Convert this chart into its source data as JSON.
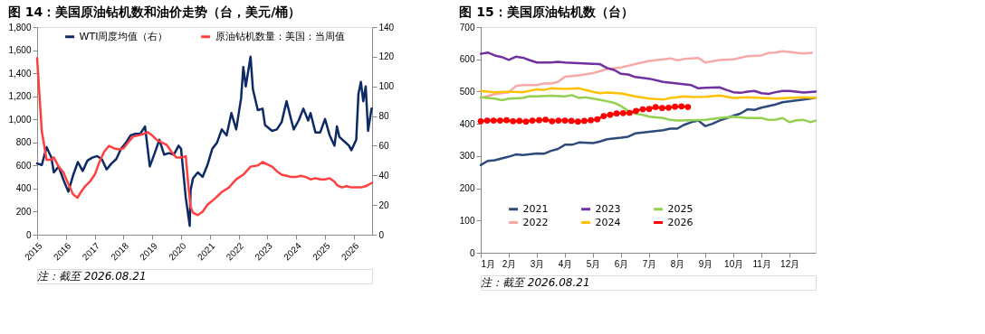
{
  "chart_data": [
    {
      "type": "line",
      "title": "图 14：美国原油钻机数和油价走势（台，美元/桶）",
      "annotations": [
        "注：截至 2026.08.21"
      ],
      "legend": "top",
      "grid": false,
      "xlim": [
        "2015-01",
        "2026-08-21"
      ],
      "xticks": [
        "2015",
        "2016",
        "2017",
        "2018",
        "2019",
        "2020",
        "2021",
        "2022",
        "2023",
        "2024",
        "2025",
        "2026"
      ],
      "ylim": [
        0,
        1800
      ],
      "yticks": [
        0,
        200,
        400,
        600,
        800,
        {
          "value": 1000,
          "label": "1,000"
        },
        {
          "value": 1200,
          "label": "1,200"
        },
        {
          "value": 1400,
          "label": "1,400"
        },
        {
          "value": 1600,
          "label": "1,600"
        },
        {
          "value": 1800,
          "label": "1,800"
        }
      ],
      "y2lim": [
        0,
        140
      ],
      "y2ticks": [
        0,
        20,
        40,
        60,
        80,
        100,
        120,
        140
      ],
      "series": [
        {
          "name": "WTI周度均值（右）",
          "color": "#0d2a66",
          "axis": "y2",
          "x": [
            "2015-01",
            "2015-03",
            "2015-05",
            "2015-07",
            "2015-08",
            "2015-10",
            "2015-12",
            "2016-02",
            "2016-04",
            "2016-06",
            "2016-08",
            "2016-10",
            "2016-12",
            "2017-02",
            "2017-04",
            "2017-06",
            "2017-08",
            "2017-10",
            "2017-12",
            "2018-02",
            "2018-04",
            "2018-06",
            "2018-08",
            "2018-10",
            "2018-12",
            "2019-02",
            "2019-04",
            "2019-06",
            "2019-08",
            "2019-10",
            "2019-12",
            "2020-01",
            "2020-03",
            "2020-04-20",
            "2020-05",
            "2020-06",
            "2020-08",
            "2020-10",
            "2020-12",
            "2021-02",
            "2021-04",
            "2021-06",
            "2021-08",
            "2021-10",
            "2021-12",
            "2022-02",
            "2022-03",
            "2022-04",
            "2022-06",
            "2022-07",
            "2022-09",
            "2022-11",
            "2022-12",
            "2023-03",
            "2023-05",
            "2023-07",
            "2023-09",
            "2023-11",
            "2023-12",
            "2024-02",
            "2024-04",
            "2024-06",
            "2024-07",
            "2024-09",
            "2024-11",
            "2025-01",
            "2025-03",
            "2025-05",
            "2025-06",
            "2025-07",
            "2025-09",
            "2025-11",
            "2025-12",
            "2026-02",
            "2026-03",
            "2026-04",
            "2026-05",
            "2026-06",
            "2026-07",
            "2026-08-14"
          ],
          "values": [
            48,
            47,
            59,
            52,
            42,
            46,
            37,
            29,
            40,
            49,
            43,
            50,
            52,
            53,
            51,
            44,
            48,
            51,
            58,
            62,
            67,
            68,
            68,
            73,
            46,
            55,
            64,
            54,
            55,
            54,
            60,
            58,
            25,
            6,
            30,
            38,
            42,
            39,
            47,
            58,
            62,
            71,
            67,
            82,
            71,
            92,
            113,
            100,
            120,
            98,
            84,
            85,
            74,
            70,
            71,
            76,
            90,
            77,
            71,
            77,
            85,
            77,
            82,
            69,
            69,
            78,
            67,
            60,
            73,
            66,
            63,
            60,
            57,
            64,
            95,
            103,
            90,
            100,
            70,
            85
          ]
        },
        {
          "name": "原油钻机数量：美国：当周值",
          "color": "#ff4040",
          "axis": "y",
          "x": [
            "2015-01",
            "2015-03",
            "2015-05",
            "2015-07",
            "2015-08",
            "2015-10",
            "2015-12",
            "2016-02",
            "2016-04",
            "2016-05-27",
            "2016-07",
            "2016-09",
            "2016-11",
            "2017-01",
            "2017-03",
            "2017-05",
            "2017-07",
            "2017-09",
            "2017-11",
            "2018-01",
            "2018-03",
            "2018-05",
            "2018-07",
            "2018-09",
            "2018-11",
            "2019-01",
            "2019-03",
            "2019-05",
            "2019-07",
            "2019-09",
            "2019-11",
            "2020-01",
            "2020-03",
            "2020-04",
            "2020-05",
            "2020-06",
            "2020-08",
            "2020-10",
            "2020-12",
            "2021-03",
            "2021-06",
            "2021-09",
            "2021-12",
            "2022-03",
            "2022-06",
            "2022-09",
            "2022-11",
            "2023-01",
            "2023-03",
            "2023-05",
            "2023-07",
            "2023-09",
            "2023-11",
            "2024-01",
            "2024-03",
            "2024-05",
            "2024-07",
            "2024-09",
            "2024-11",
            "2025-01",
            "2025-03",
            "2025-05",
            "2025-06",
            "2025-08",
            "2025-10",
            "2025-12",
            "2026-02",
            "2026-04",
            "2026-06",
            "2026-08-21"
          ],
          "values": [
            1530,
            900,
            650,
            650,
            670,
            590,
            540,
            440,
            350,
            320,
            360,
            420,
            460,
            520,
            630,
            720,
            770,
            750,
            740,
            750,
            800,
            850,
            860,
            870,
            890,
            860,
            820,
            800,
            780,
            720,
            670,
            670,
            680,
            440,
            240,
            190,
            170,
            200,
            260,
            310,
            370,
            410,
            480,
            520,
            590,
            600,
            630,
            610,
            590,
            550,
            520,
            510,
            500,
            500,
            510,
            500,
            480,
            490,
            480,
            480,
            490,
            460,
            430,
            410,
            420,
            410,
            410,
            410,
            420,
            450
          ]
        }
      ]
    },
    {
      "type": "line",
      "title": "图 15：美国原油钻机数（台）",
      "annotations": [
        "注：截至 2026.08.21"
      ],
      "legend": "bottom left",
      "grid": false,
      "xlim": [
        1,
        12.93
      ],
      "xticks": [
        {
          "value": 1,
          "label": "1月"
        },
        {
          "value": 2,
          "label": "2月"
        },
        {
          "value": 3,
          "label": "3月"
        },
        {
          "value": 4,
          "label": "4月"
        },
        {
          "value": 5,
          "label": "5月"
        },
        {
          "value": 6,
          "label": "6月"
        },
        {
          "value": 7,
          "label": "7月"
        },
        {
          "value": 8,
          "label": "8月"
        },
        {
          "value": 9,
          "label": "9月"
        },
        {
          "value": 10,
          "label": "10月"
        },
        {
          "value": 11,
          "label": "11月"
        },
        {
          "value": 12,
          "label": "12月"
        }
      ],
      "ylim": [
        0,
        700
      ],
      "yticks": [
        0,
        100,
        200,
        300,
        400,
        500,
        600,
        700
      ],
      "series": [
        {
          "name": "2021",
          "color": "#2e4a7a",
          "x": [
            1,
            1.25,
            1.5,
            2,
            2.25,
            2.5,
            3,
            3.25,
            3.5,
            3.75,
            4,
            4.25,
            4.5,
            5,
            5.25,
            5.5,
            6,
            6.25,
            6.5,
            7,
            7.5,
            7.75,
            8,
            8.25,
            8.5,
            8.75,
            9,
            9.25,
            9.5,
            10,
            10.25,
            10.5,
            10.75,
            11,
            11.5,
            11.75,
            12,
            12.5,
            12.9
          ],
          "values": [
            272,
            285,
            287,
            298,
            305,
            303,
            308,
            307,
            316,
            322,
            335,
            335,
            342,
            340,
            345,
            352,
            357,
            360,
            370,
            375,
            380,
            385,
            385,
            397,
            405,
            410,
            393,
            400,
            410,
            425,
            432,
            445,
            443,
            450,
            460,
            467,
            470,
            475,
            480
          ]
        },
        {
          "name": "2022",
          "color": "#f9a8a8",
          "x": [
            1,
            1.5,
            2,
            2.25,
            2.5,
            3,
            3.25,
            3.5,
            3.75,
            4,
            4.5,
            5,
            5.5,
            6,
            6.25,
            6.5,
            7,
            7.5,
            7.75,
            8,
            8.25,
            8.5,
            8.75,
            9,
            9.5,
            10,
            10.25,
            10.5,
            11,
            11.25,
            11.5,
            11.75,
            12,
            12.25,
            12.5,
            12.8
          ],
          "values": [
            480,
            492,
            498,
            517,
            520,
            520,
            525,
            525,
            530,
            546,
            550,
            557,
            570,
            575,
            580,
            585,
            595,
            600,
            603,
            597,
            601,
            603,
            604,
            590,
            598,
            600,
            605,
            610,
            612,
            620,
            621,
            625,
            623,
            620,
            618,
            620
          ]
        },
        {
          "name": "2023",
          "color": "#7030a0",
          "x": [
            1,
            1.25,
            1.5,
            1.75,
            2,
            2.25,
            2.5,
            2.75,
            3,
            3.5,
            3.75,
            4,
            4.5,
            5,
            5.25,
            5.5,
            5.75,
            6,
            6.25,
            6.5,
            7,
            7.5,
            8,
            8.5,
            8.75,
            9,
            9.5,
            9.75,
            10,
            10.25,
            10.5,
            10.75,
            11,
            11.25,
            11.5,
            11.75,
            12,
            12.5,
            12.93
          ],
          "values": [
            617,
            621,
            612,
            607,
            598,
            608,
            605,
            597,
            590,
            590,
            592,
            590,
            588,
            586,
            585,
            573,
            567,
            555,
            553,
            545,
            540,
            530,
            525,
            520,
            510,
            512,
            513,
            505,
            498,
            496,
            500,
            502,
            495,
            493,
            498,
            502,
            502,
            497,
            500
          ]
        },
        {
          "name": "2024",
          "color": "#ffc000",
          "x": [
            1,
            1.5,
            2,
            2.5,
            3,
            3.25,
            3.5,
            4,
            4.5,
            5,
            5.25,
            5.5,
            6,
            6.5,
            7,
            7.5,
            7.75,
            8,
            8.25,
            8.5,
            9,
            9.5,
            10,
            10.5,
            11,
            11.5,
            12,
            12.5,
            12.93
          ],
          "values": [
            502,
            498,
            500,
            498,
            507,
            505,
            510,
            508,
            510,
            499,
            495,
            497,
            494,
            485,
            478,
            475,
            480,
            482,
            485,
            483,
            484,
            488,
            480,
            482,
            480,
            478,
            480,
            482,
            480
          ]
        },
        {
          "name": "2025",
          "color": "#92d050",
          "x": [
            1,
            1.5,
            1.75,
            2,
            2.5,
            2.75,
            3,
            3.5,
            4,
            4.25,
            4.5,
            4.75,
            5,
            5.5,
            5.75,
            6,
            6.25,
            6.5,
            6.75,
            7,
            7.5,
            7.75,
            8,
            8.5,
            9,
            9.5,
            10,
            10.5,
            11,
            11.25,
            11.5,
            11.75,
            12,
            12.25,
            12.5,
            12.75,
            12.93
          ],
          "values": [
            482,
            478,
            473,
            478,
            480,
            486,
            485,
            487,
            485,
            489,
            480,
            482,
            478,
            470,
            465,
            455,
            440,
            432,
            428,
            422,
            418,
            412,
            410,
            411,
            412,
            418,
            422,
            418,
            418,
            412,
            413,
            418,
            405,
            411,
            412,
            405,
            410
          ]
        },
        {
          "name": "2026",
          "color": "#ff0000",
          "marker": "circle",
          "x": [
            1,
            1.23,
            1.46,
            1.69,
            1.92,
            2.15,
            2.38,
            2.61,
            2.84,
            3.08,
            3.31,
            3.54,
            3.77,
            4,
            4.23,
            4.46,
            4.69,
            4.92,
            5.15,
            5.38,
            5.61,
            5.84,
            6.07,
            6.3,
            6.53,
            6.77,
            7,
            7.23,
            7.46,
            7.69,
            7.92,
            8.15,
            8.38
          ],
          "values": [
            408,
            410,
            410,
            410,
            411,
            408,
            409,
            407,
            410,
            411,
            413,
            408,
            410,
            410,
            409,
            407,
            409,
            411,
            414,
            424,
            428,
            432,
            433,
            434,
            440,
            445,
            446,
            452,
            449,
            450,
            453,
            454,
            452
          ]
        }
      ]
    }
  ]
}
